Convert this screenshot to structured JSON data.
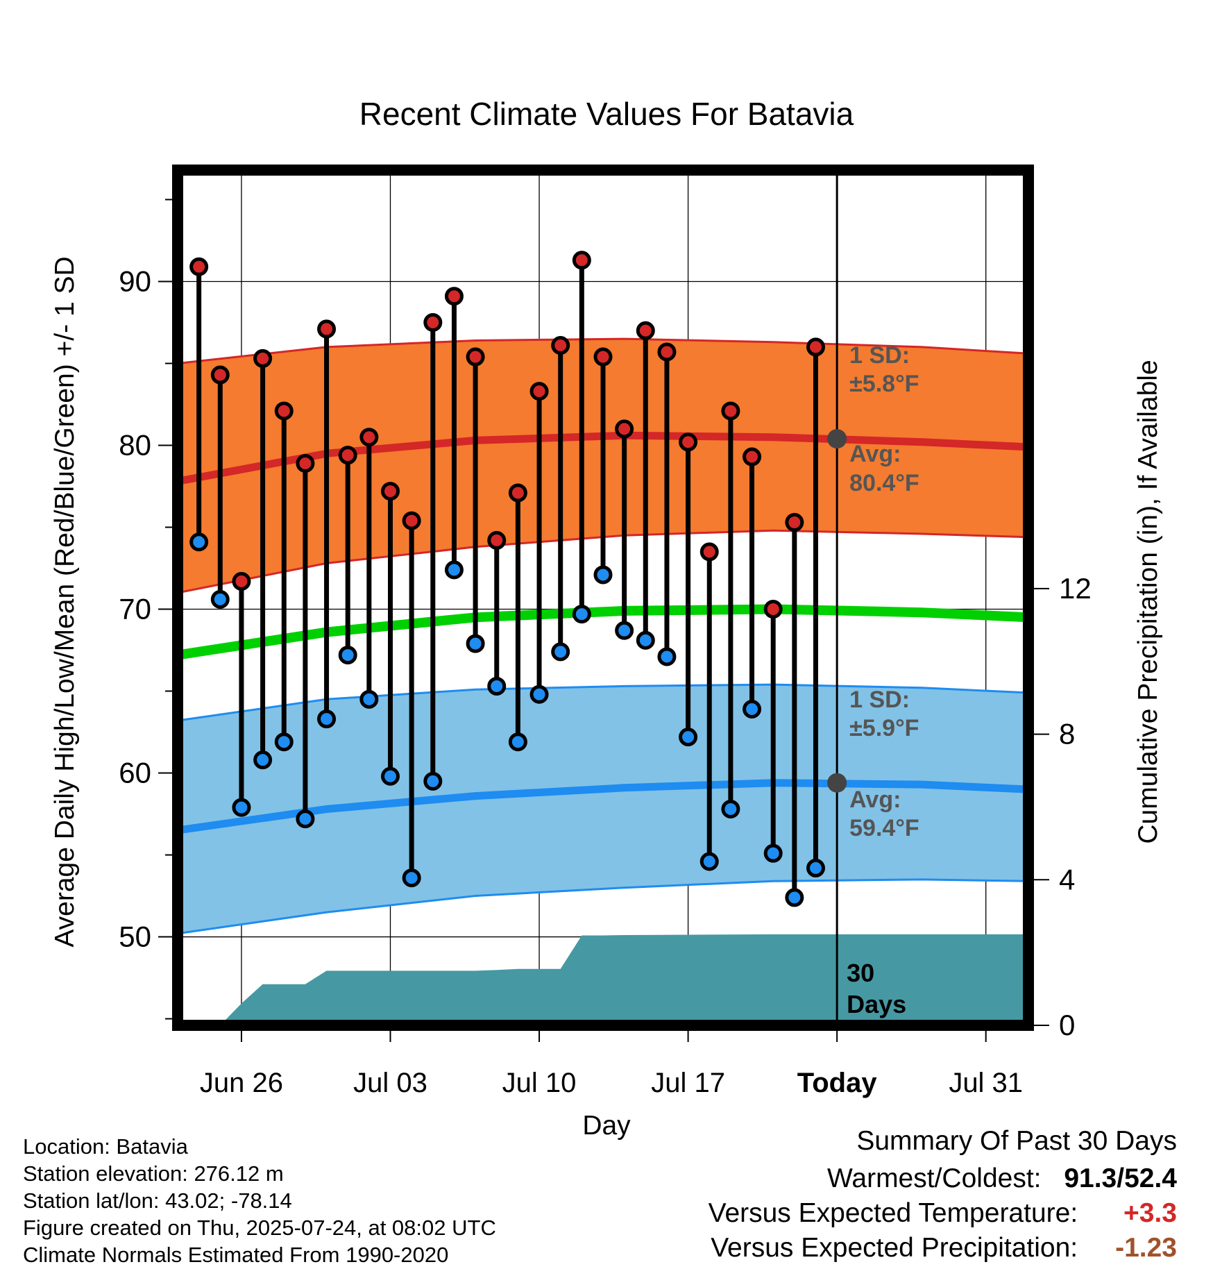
{
  "chart_data": {
    "type": "line",
    "title": "Recent Climate Values For Batavia",
    "xlabel": "Day",
    "ylabel": "Average Daily High/Low/Mean (Red/Blue/Green) +/- 1 SD",
    "ylabel_right": "Cumulative Precipitation (in), If Available",
    "x_range_days": [
      "Jun 23",
      "Aug 02"
    ],
    "ylim": [
      44.6,
      96.8
    ],
    "ylim_right": [
      0,
      23.5
    ],
    "y_ticks": [
      50,
      60,
      70,
      80,
      90
    ],
    "y_ticks_right": [
      0,
      4,
      8,
      12
    ],
    "x_ticks": [
      {
        "date": "Jun 26",
        "label": "Jun 26"
      },
      {
        "date": "Jul 03",
        "label": "Jul 03"
      },
      {
        "date": "Jul 10",
        "label": "Jul 10"
      },
      {
        "date": "Jul 17",
        "label": "Jul 17"
      },
      {
        "date": "Jul 24",
        "label": "Today"
      },
      {
        "date": "Jul 31",
        "label": "Jul 31"
      }
    ],
    "grid": true,
    "today": "Jul 24",
    "normals": {
      "dates": [
        "Jun 23",
        "Jun 30",
        "Jul 07",
        "Jul 14",
        "Jul 21",
        "Jul 28",
        "Aug 02"
      ],
      "high_avg": [
        77.8,
        79.5,
        80.3,
        80.6,
        80.5,
        80.2,
        79.9
      ],
      "high_upper": [
        85.0,
        86.0,
        86.4,
        86.5,
        86.3,
        86.0,
        85.6
      ],
      "high_lower": [
        71.0,
        72.8,
        73.8,
        74.5,
        74.8,
        74.6,
        74.4
      ],
      "mean": [
        67.2,
        68.6,
        69.5,
        69.9,
        70.0,
        69.8,
        69.5
      ],
      "low_avg": [
        56.5,
        57.8,
        58.6,
        59.1,
        59.4,
        59.3,
        59.0
      ],
      "low_upper": [
        63.2,
        64.5,
        65.1,
        65.3,
        65.4,
        65.2,
        64.9
      ],
      "low_lower": [
        50.2,
        51.5,
        52.5,
        53.0,
        53.4,
        53.5,
        53.4
      ]
    },
    "series": [
      {
        "name": "High",
        "dates": [
          "Jun 24",
          "Jun 25",
          "Jun 26",
          "Jun 27",
          "Jun 28",
          "Jun 29",
          "Jun 30",
          "Jul 01",
          "Jul 02",
          "Jul 03",
          "Jul 04",
          "Jul 05",
          "Jul 06",
          "Jul 07",
          "Jul 08",
          "Jul 09",
          "Jul 10",
          "Jul 11",
          "Jul 12",
          "Jul 13",
          "Jul 14",
          "Jul 15",
          "Jul 16",
          "Jul 17",
          "Jul 18",
          "Jul 19",
          "Jul 20",
          "Jul 21",
          "Jul 22",
          "Jul 23"
        ],
        "values": [
          90.9,
          84.3,
          71.7,
          85.3,
          82.1,
          78.9,
          87.1,
          79.4,
          80.5,
          77.2,
          75.4,
          87.5,
          89.1,
          85.4,
          74.2,
          77.1,
          83.3,
          86.1,
          91.3,
          85.4,
          81.0,
          87.0,
          85.7,
          80.2,
          73.5,
          82.1,
          79.3,
          70.0,
          75.3,
          86.0
        ]
      },
      {
        "name": "Low",
        "dates": [
          "Jun 24",
          "Jun 25",
          "Jun 26",
          "Jun 27",
          "Jun 28",
          "Jun 29",
          "Jun 30",
          "Jul 01",
          "Jul 02",
          "Jul 03",
          "Jul 04",
          "Jul 05",
          "Jul 06",
          "Jul 07",
          "Jul 08",
          "Jul 09",
          "Jul 10",
          "Jul 11",
          "Jul 12",
          "Jul 13",
          "Jul 14",
          "Jul 15",
          "Jul 16",
          "Jul 17",
          "Jul 18",
          "Jul 19",
          "Jul 20",
          "Jul 21",
          "Jul 22",
          "Jul 23"
        ],
        "values": [
          74.1,
          70.6,
          57.9,
          60.8,
          61.9,
          57.2,
          63.3,
          67.2,
          64.5,
          59.8,
          53.6,
          59.5,
          72.4,
          67.9,
          65.3,
          61.9,
          64.8,
          67.4,
          69.7,
          72.1,
          68.7,
          68.1,
          67.1,
          62.2,
          54.6,
          57.8,
          63.9,
          55.1,
          52.4,
          54.2
        ]
      }
    ],
    "precipitation": {
      "dates": [
        "Jun 25",
        "Jun 26",
        "Jun 27",
        "Jun 28",
        "Jun 29",
        "Jun 30",
        "Jul 01",
        "Jul 02",
        "Jul 03",
        "Jul 04",
        "Jul 05",
        "Jul 06",
        "Jul 07",
        "Jul 08",
        "Jul 09",
        "Jul 10",
        "Jul 11",
        "Jul 12",
        "Jul 13",
        "Jul 14",
        "Jul 21",
        "Jul 24",
        "Aug 02"
      ],
      "values": [
        0,
        0.6,
        1.13,
        1.13,
        1.13,
        1.5,
        1.5,
        1.5,
        1.5,
        1.5,
        1.5,
        1.5,
        1.5,
        1.52,
        1.55,
        1.55,
        1.55,
        2.47,
        2.47,
        2.48,
        2.5,
        2.5,
        2.5
      ]
    },
    "annotations": {
      "high_sd": {
        "label": "1 SD:",
        "value": "±5.8°F"
      },
      "high_avg": {
        "label": "Avg:",
        "value": "80.4°F"
      },
      "low_sd": {
        "label": "1 SD:",
        "value": "±5.9°F"
      },
      "low_avg": {
        "label": "Avg:",
        "value": "59.4°F"
      },
      "precip_period": [
        "30",
        "Days"
      ]
    },
    "colors": {
      "high_band": "#f47b2f",
      "high_line": "#d42727",
      "low_band": "#82c2e6",
      "low_line": "#1e8cf0",
      "mean_line": "#00d000",
      "precip": "#4699a3",
      "high_marker": "#d42727",
      "low_marker": "#1e8cf0",
      "annotation_text": "#555555"
    }
  },
  "footer": {
    "location": "Location: Batavia",
    "elevation": "Station elevation: 276.12 m",
    "latlon": "Station lat/lon: 43.02; -78.14",
    "created": "Figure created on Thu, 2025-07-24, at 08:02 UTC",
    "normals": "Climate Normals Estimated From 1990-2020"
  },
  "summary": {
    "title": "Summary Of Past 30 Days",
    "warmest_label": "Warmest/Coldest:",
    "warmest_value": "91.3",
    "coldest_value": "52.4",
    "temp_label": "Versus Expected Temperature:",
    "temp_value": "+3.3",
    "temp_color": "#d42727",
    "precip_label": "Versus Expected Precipitation:",
    "precip_value": "-1.23",
    "precip_color": "#a0522d"
  }
}
